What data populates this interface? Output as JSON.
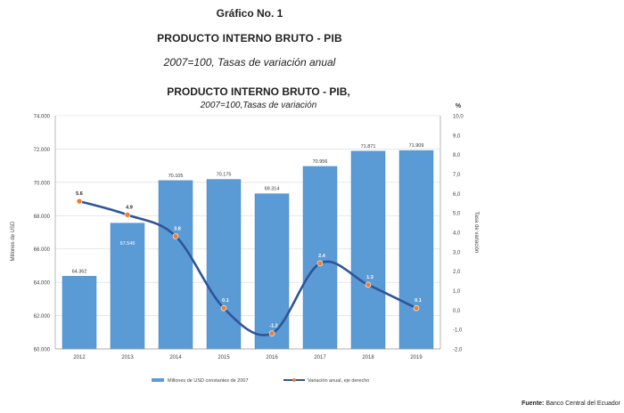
{
  "header": {
    "figure_label": "Gráfico No. 1",
    "title": "PRODUCTO INTERNO BRUTO - PIB",
    "subtitle": "2007=100, Tasas de variación anual"
  },
  "chart_data": {
    "type": "bar+line",
    "title": "PRODUCTO INTERNO BRUTO - PIB,",
    "subtitle": "2007=100,Tasas de variación",
    "categories": [
      "2012",
      "2013",
      "2014",
      "2015",
      "2016",
      "2017",
      "2018",
      "2019"
    ],
    "y_left": {
      "label": "Millones de USD",
      "range": [
        60000,
        74000
      ],
      "ticks": [
        "60.000",
        "62.000",
        "64.000",
        "66.000",
        "68.000",
        "70.000",
        "72.000",
        "74.000"
      ]
    },
    "y_right": {
      "label": "Tasa de variación",
      "unit": "%",
      "range": [
        -2.0,
        10.0
      ],
      "ticks": [
        "-2,0",
        "-1,0",
        "0,0",
        "1,0",
        "2,0",
        "3,0",
        "4,0",
        "5,0",
        "6,0",
        "7,0",
        "8,0",
        "9,0",
        "10,0"
      ]
    },
    "series": [
      {
        "name": "Millones de USD constantes de 2007",
        "type": "bar",
        "axis": "left",
        "values": [
          64362,
          67546,
          70105,
          70175,
          69314,
          70956,
          71871,
          71909
        ],
        "labels": [
          "64.362",
          "67.546",
          "70.105",
          "70.175",
          "69.314",
          "70.956",
          "71.871",
          "71.909"
        ]
      },
      {
        "name": "Variación anual, eje derecho",
        "type": "line",
        "axis": "right",
        "values": [
          5.6,
          4.9,
          3.8,
          0.1,
          -1.2,
          2.4,
          1.3,
          0.1
        ],
        "labels": [
          "5.6",
          "4.9",
          "3.8",
          "0.1",
          "-1.2",
          "2.4",
          "1.3",
          "0.1"
        ]
      }
    ],
    "colors": {
      "bar": "#5b9bd5",
      "bar_edge": "#4a86c0",
      "line": "#2f5597",
      "marker": "#ed7d31"
    },
    "legend_position": "bottom"
  },
  "source": {
    "label": "Fuente:",
    "text": "Banco Central del Ecuador"
  }
}
